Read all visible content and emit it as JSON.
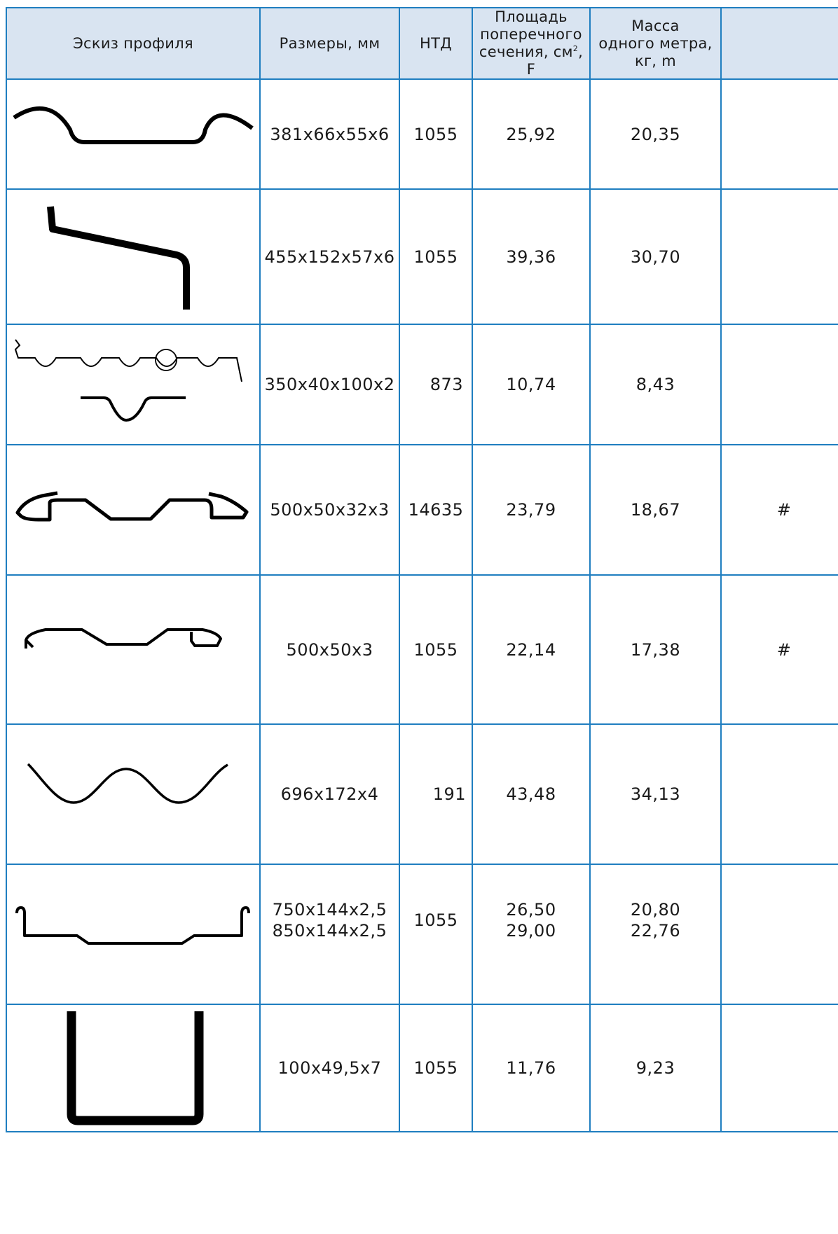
{
  "table": {
    "headers": {
      "sketch": "Эскиз профиля",
      "dimensions": "Размеры, мм",
      "ntd": "НТД",
      "area_l1": "Площадь",
      "area_l2": "поперечного",
      "area_l3a": "сечения, см",
      "area_sup": "2",
      "area_l3b": ", F",
      "mass_l1": "Масса",
      "mass_l2": "одного метра,",
      "mass_l3": "кг, m",
      "extra": ""
    },
    "rows": [
      {
        "sketch_icon": "arched-sheet-pile-profile-icon",
        "dim1": "381x66x55x6",
        "dim2": "",
        "ntd": "1055",
        "area1": "25,92",
        "area2": "",
        "mass1": "20,35",
        "mass2": "",
        "extra": ""
      },
      {
        "sketch_icon": "z-sheet-pile-profile-icon",
        "dim1": "455x152x57x6",
        "dim2": "",
        "ntd": "1055",
        "area1": "39,36",
        "area2": "",
        "mass1": "30,70",
        "mass2": "",
        "extra": ""
      },
      {
        "sketch_icon": "corrugated-sheet-profile-icon",
        "dim1": "350x40x100x2",
        "dim2": "",
        "ntd": "873",
        "area1": "10,74",
        "area2": "",
        "mass1": "8,43",
        "mass2": "",
        "extra": ""
      },
      {
        "sketch_icon": "trapezoid-lock-profile-icon",
        "dim1": "500x50x32x3",
        "dim2": "",
        "ntd": "14635",
        "area1": "23,79",
        "area2": "",
        "mass1": "18,67",
        "mass2": "",
        "extra": "#"
      },
      {
        "sketch_icon": "trapezoid-hook-profile-icon",
        "dim1": "500x50x3",
        "dim2": "",
        "ntd": "1055",
        "area1": "22,14",
        "area2": "",
        "mass1": "17,38",
        "mass2": "",
        "extra": "#"
      },
      {
        "sketch_icon": "wave-profile-icon",
        "dim1": "696x172x4",
        "dim2": "",
        "ntd": "191",
        "area1": "43,48",
        "area2": "",
        "mass1": "34,13",
        "mass2": "",
        "extra": ""
      },
      {
        "sketch_icon": "flat-tray-profile-icon",
        "dim1": "750x144x2,5",
        "dim2": "850x144x2,5",
        "ntd": "1055",
        "area1": "26,50",
        "area2": "29,00",
        "mass1": "20,80",
        "mass2": "22,76",
        "extra": ""
      },
      {
        "sketch_icon": "channel-profile-icon",
        "dim1": "100x49,5x7",
        "dim2": "",
        "ntd": "1055",
        "area1": "11,76",
        "area2": "",
        "mass1": "9,23",
        "mass2": "",
        "extra": ""
      }
    ]
  }
}
